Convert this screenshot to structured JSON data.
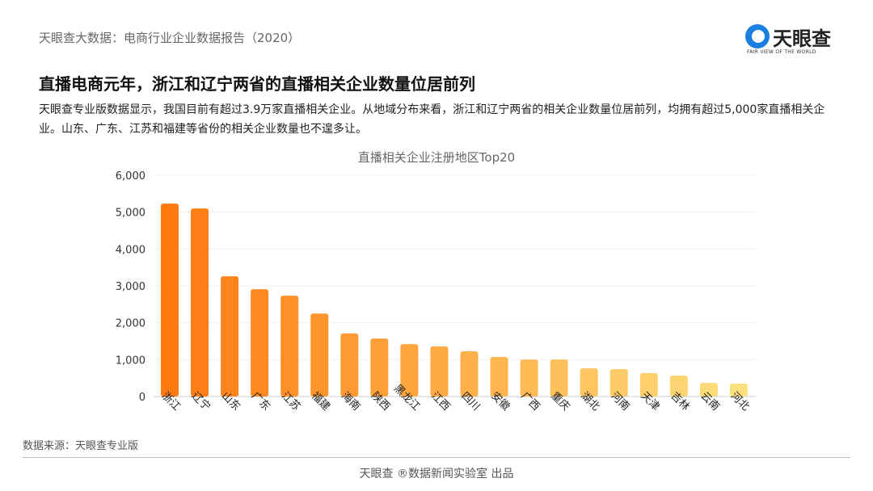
{
  "header": {
    "text": "天眼查大数据：电商行业企业数据报告（2020）"
  },
  "logo": {
    "name": "天眼查",
    "tagline": "FAIR VIEW OF THE WORLD"
  },
  "title": "直播电商元年，浙江和辽宁两省的直播相关企业数量位居前列",
  "description": "天眼查专业版数据显示，我国目前有超过3.9万家直播相关企业。从地域分布来看，浙江和辽宁两省的相关企业数量位居前列，均拥有超过5,000家直播相关企业。山东、广东、江苏和福建等省份的相关企业数量也不遑多让。",
  "source": "数据来源：天眼查专业版",
  "footer": "天眼查 ®数据新闻实验室 出品",
  "chart_data": {
    "type": "bar",
    "title": "直播相关企业注册地区Top20",
    "categories": [
      "浙江",
      "辽宁",
      "山东",
      "广东",
      "江苏",
      "福建",
      "海南",
      "陕西",
      "黑龙江",
      "江西",
      "四川",
      "安徽",
      "广西",
      "重庆",
      "湖北",
      "河南",
      "天津",
      "吉林",
      "云南",
      "河北"
    ],
    "values": [
      5230,
      5100,
      3260,
      2910,
      2735,
      2250,
      1710,
      1575,
      1420,
      1360,
      1225,
      1070,
      1005,
      1005,
      765,
      745,
      635,
      570,
      370,
      350
    ],
    "ylim": [
      0,
      6000
    ],
    "yticks": [
      "0",
      "1,000",
      "2,000",
      "3,000",
      "4,000",
      "5,000",
      "6,000"
    ],
    "grid": true,
    "colors": {
      "start": "#ff7a10",
      "end": "#fde07e"
    }
  }
}
